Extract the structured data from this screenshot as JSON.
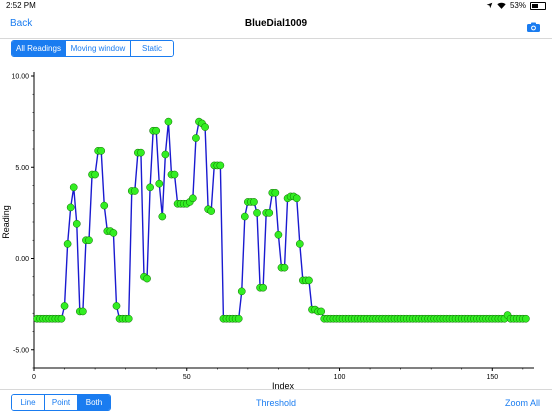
{
  "status": {
    "time": "2:52 PM",
    "battery_text": "53%",
    "battery_level": 0.53
  },
  "nav": {
    "back_label": "Back",
    "title": "BlueDial1009",
    "camera_icon": "camera-icon"
  },
  "view_modes": [
    {
      "label": "All Readings",
      "active": true
    },
    {
      "label": "Moving window",
      "active": false
    },
    {
      "label": "Static",
      "active": false
    }
  ],
  "plot_styles": [
    {
      "label": "Line",
      "active": false
    },
    {
      "label": "Point",
      "active": false
    },
    {
      "label": "Both",
      "active": true
    }
  ],
  "bottom": {
    "threshold_label": "Threshold",
    "zoom_label": "Zoom All"
  },
  "colors": {
    "accent": "#1a7cf0",
    "line": "#1a1ad0",
    "point": "#33ee22"
  },
  "chart_data": {
    "type": "line",
    "xlabel": "Index",
    "ylabel": "Reading",
    "xlim": [
      0,
      163
    ],
    "ylim": [
      -6,
      10
    ],
    "x_ticks": [
      0,
      50,
      100,
      150
    ],
    "x_tick_labels": [
      "0",
      "50",
      "100",
      "150"
    ],
    "y_ticks": [
      -5,
      0,
      5,
      10
    ],
    "y_tick_labels": [
      "-5.00",
      "0.00",
      "5.00",
      "10.00"
    ],
    "grid": false,
    "series": [
      {
        "values": [
          -3.3,
          -3.3,
          -3.3,
          -3.3,
          -3.3,
          -3.3,
          -3.3,
          -3.3,
          -3.3,
          -2.6,
          0.8,
          2.8,
          3.9,
          1.9,
          -2.9,
          -2.9,
          1.0,
          1.0,
          4.6,
          4.6,
          5.9,
          5.9,
          2.9,
          1.5,
          1.5,
          1.4,
          -2.6,
          -3.3,
          -3.3,
          -3.3,
          -3.3,
          3.7,
          3.7,
          5.8,
          5.8,
          -1.0,
          -1.1,
          3.9,
          7.0,
          7.0,
          4.1,
          2.3,
          5.7,
          7.5,
          4.6,
          4.6,
          3.0,
          3.0,
          3.0,
          3.0,
          3.1,
          3.3,
          6.6,
          7.5,
          7.4,
          7.2,
          2.7,
          2.6,
          5.1,
          5.1,
          5.1,
          -3.3,
          -3.3,
          -3.3,
          -3.3,
          -3.3,
          -3.3,
          -1.8,
          2.3,
          3.1,
          3.1,
          3.1,
          2.5,
          -1.6,
          -1.6,
          2.5,
          2.5,
          3.6,
          3.6,
          1.3,
          -0.5,
          -0.5,
          3.3,
          3.4,
          3.4,
          3.3,
          0.8,
          -1.2,
          -1.2,
          -1.2,
          -2.8,
          -2.8,
          -2.9,
          -2.9,
          -3.3,
          -3.3,
          -3.3,
          -3.3,
          -3.3,
          -3.3,
          -3.3,
          -3.3,
          -3.3,
          -3.3,
          -3.3,
          -3.3,
          -3.3,
          -3.3,
          -3.3,
          -3.3,
          -3.3,
          -3.3,
          -3.3,
          -3.3,
          -3.3,
          -3.3,
          -3.3,
          -3.3,
          -3.3,
          -3.3,
          -3.3,
          -3.3,
          -3.3,
          -3.3,
          -3.3,
          -3.3,
          -3.3,
          -3.3,
          -3.3,
          -3.3,
          -3.3,
          -3.3,
          -3.3,
          -3.3,
          -3.3,
          -3.3,
          -3.3,
          -3.3,
          -3.3,
          -3.3,
          -3.3,
          -3.3,
          -3.3,
          -3.3,
          -3.3,
          -3.3,
          -3.3,
          -3.3,
          -3.3,
          -3.3,
          -3.3,
          -3.3,
          -3.3,
          -3.3,
          -3.1,
          -3.3,
          -3.3,
          -3.3,
          -3.3,
          -3.3,
          -3.3
        ]
      }
    ]
  }
}
